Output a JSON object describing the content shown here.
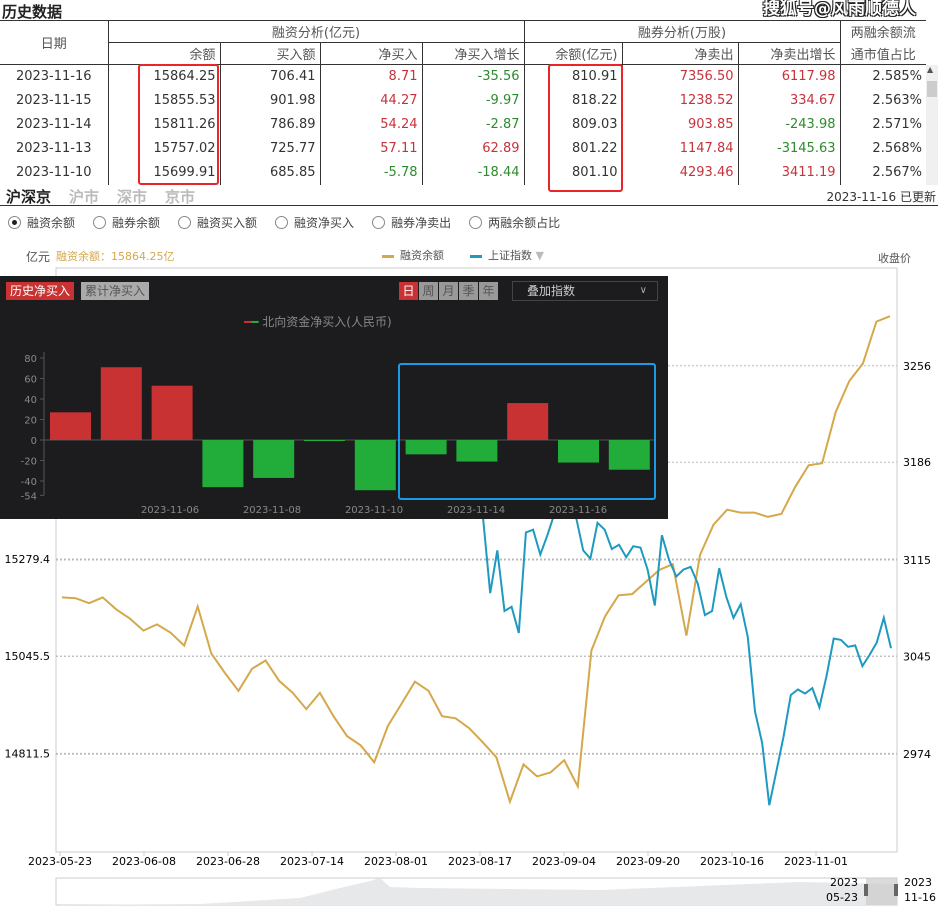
{
  "title": "历史数据",
  "watermark": "搜狐号@风雨顺德人",
  "table": {
    "date_header": "日期",
    "group_margin": "融资分析(亿元)",
    "group_short": "融券分析(万股)",
    "ratio_header_1": "两融余额流",
    "ratio_header_2": "通市值占比",
    "columns": [
      "余额",
      "买入额",
      "净买入",
      "净买入增长",
      "余额(亿元)",
      "净卖出",
      "净卖出增长"
    ],
    "rows": [
      {
        "date": "2023-11-16",
        "bal": "15864.25",
        "buy": "706.41",
        "net": "8.71",
        "net_g": "-35.56",
        "sbal": "810.91",
        "sell": "7356.50",
        "sell_g": "6117.98",
        "ratio": "2.585%"
      },
      {
        "date": "2023-11-15",
        "bal": "15855.53",
        "buy": "901.98",
        "net": "44.27",
        "net_g": "-9.97",
        "sbal": "818.22",
        "sell": "1238.52",
        "sell_g": "334.67",
        "ratio": "2.563%"
      },
      {
        "date": "2023-11-14",
        "bal": "15811.26",
        "buy": "786.89",
        "net": "54.24",
        "net_g": "-2.87",
        "sbal": "809.03",
        "sell": "903.85",
        "sell_g": "-243.98",
        "ratio": "2.571%"
      },
      {
        "date": "2023-11-13",
        "bal": "15757.02",
        "buy": "725.77",
        "net": "57.11",
        "net_g": "62.89",
        "sbal": "801.22",
        "sell": "1147.84",
        "sell_g": "-3145.63",
        "ratio": "2.568%"
      },
      {
        "date": "2023-11-10",
        "bal": "15699.91",
        "buy": "685.85",
        "net": "-5.78",
        "net_g": "-18.44",
        "sbal": "801.10",
        "sell": "4293.46",
        "sell_g": "3411.19",
        "ratio": "2.567%"
      }
    ]
  },
  "market_tabs": [
    "沪深京",
    "沪市",
    "深市",
    "京市"
  ],
  "updated": "2023-11-16 已更新",
  "radios": [
    "融资余额",
    "融券余额",
    "融资买入额",
    "融资净买入",
    "融券净卖出",
    "两融余额占比"
  ],
  "chart": {
    "unit": "亿元",
    "current": "融资余额：15864.25亿",
    "legend_margin": "融资余额",
    "legend_index": "上证指数",
    "right_label": "收盘价",
    "left_ticks": [
      "15279.4",
      "15045.5",
      "14811.5"
    ],
    "left_tick_values": [
      15279.4,
      15045.5,
      14811.5
    ],
    "right_ticks": [
      "3256",
      "3186",
      "3115",
      "3045",
      "2974"
    ],
    "right_tick_values": [
      3256,
      3186,
      3115,
      3045,
      2974
    ],
    "left_range": [
      14574,
      15980
    ],
    "right_range": [
      2903,
      3327
    ],
    "x_ticks": [
      "2023-05-23",
      "2023-06-08",
      "2023-06-28",
      "2023-07-14",
      "2023-08-01",
      "2023-08-17",
      "2023-09-04",
      "2023-09-20",
      "2023-10-16",
      "2023-11-01"
    ],
    "nav_start": "2023\n05-23",
    "nav_end": "2023\n11-16",
    "nav_start_y": "2023",
    "nav_start_md": "05-23",
    "nav_end_y": "2023",
    "nav_end_md": "11-16",
    "colors": {
      "margin": "#d4a84b",
      "index": "#1e9ac0"
    },
    "margin_series": [
      15187,
      15185,
      15173,
      15187,
      15158,
      15136,
      15107,
      15122,
      15102,
      15071,
      15165,
      15052,
      15005,
      14962,
      15015,
      15035,
      14986,
      14957,
      14918,
      14957,
      14901,
      14853,
      14831,
      14790,
      14877,
      14930,
      14984,
      14962,
      14901,
      14896,
      14872,
      14838,
      14802,
      14695,
      14785,
      14756,
      14766,
      14795,
      14732,
      15059,
      15141,
      15192,
      15195,
      15224,
      15253,
      15267,
      15095,
      15289,
      15362,
      15398,
      15391,
      15391,
      15381,
      15388,
      15452,
      15505,
      15510,
      15633,
      15708,
      15750,
      15851,
      15864
    ],
    "index_start_date": "2023-08-17",
    "index_series": [
      3146,
      3091,
      3122,
      3078,
      3081,
      3062,
      3135,
      3137,
      3119,
      3133,
      3149,
      3173,
      3166,
      3146,
      3122,
      3116,
      3142,
      3137,
      3123,
      3126,
      3117,
      3125,
      3124,
      3108,
      3082,
      3133,
      3115,
      3103,
      3108,
      3110,
      3098,
      3075,
      3078,
      3109,
      3088,
      3073,
      3083,
      3059,
      3005,
      2982,
      2937,
      2962,
      2987,
      3017,
      3021,
      3018,
      3022,
      3008,
      3031,
      3058,
      3057,
      3052,
      3053,
      3038,
      3046,
      3055,
      3073,
      3051
    ]
  },
  "popup": {
    "tab_history": "历史净买入",
    "tab_cumulative": "累计净买入",
    "periods": [
      "日",
      "周",
      "月",
      "季",
      "年"
    ],
    "overlay": "叠加指数",
    "legend": "北向资金净买入(人民币)",
    "y_ticks": [
      80,
      60,
      40,
      20,
      0,
      -20,
      -40,
      -54
    ],
    "x_labels": [
      "2023-11-06",
      "2023-11-08",
      "2023-11-10",
      "2023-11-14",
      "2023-11-16"
    ],
    "chart_data": {
      "type": "bar",
      "values": [
        27,
        71,
        53,
        -46,
        -37,
        -0.5,
        -49,
        -14,
        -21,
        36,
        -22,
        -29
      ],
      "ylim": [
        -54,
        80
      ]
    },
    "colors": {
      "pos": "#c93232",
      "neg": "#22ad3a"
    }
  }
}
